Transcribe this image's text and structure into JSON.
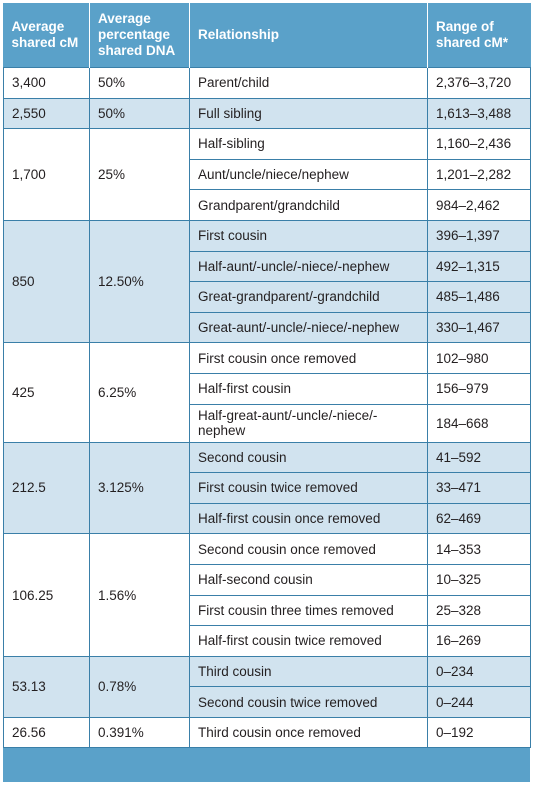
{
  "table": {
    "headers": {
      "avg_cm_line1": "Average",
      "avg_cm_line2": "shared cM",
      "avg_pct_line1": "Average",
      "avg_pct_line2": "percentage",
      "avg_pct_line3": "shared DNA",
      "relationship": "Relationship",
      "range_line1": "Range of",
      "range_line2": "shared cM*"
    },
    "groups": [
      {
        "avg_cm": "3,400",
        "avg_pct": "50%",
        "rows": [
          {
            "relationship": "Parent/child",
            "range": "2,376–3,720"
          }
        ]
      },
      {
        "avg_cm": "2,550",
        "avg_pct": "50%",
        "rows": [
          {
            "relationship": "Full sibling",
            "range": "1,613–3,488"
          }
        ]
      },
      {
        "avg_cm": "1,700",
        "avg_pct": "25%",
        "rows": [
          {
            "relationship": "Half-sibling",
            "range": "1,160–2,436"
          },
          {
            "relationship": "Aunt/uncle/niece/nephew",
            "range": "1,201–2,282"
          },
          {
            "relationship": "Grandparent/grandchild",
            "range": "984–2,462"
          }
        ]
      },
      {
        "avg_cm": "850",
        "avg_pct": "12.50%",
        "rows": [
          {
            "relationship": "First cousin",
            "range": "396–1,397"
          },
          {
            "relationship": "Half-aunt/-uncle/-niece/-nephew",
            "range": "492–1,315"
          },
          {
            "relationship": "Great-grandparent/-grandchild",
            "range": "485–1,486"
          },
          {
            "relationship": "Great-aunt/-uncle/-niece/-nephew",
            "range": "330–1,467"
          }
        ]
      },
      {
        "avg_cm": "425",
        "avg_pct": "6.25%",
        "rows": [
          {
            "relationship": "First cousin once removed",
            "range": "102–980"
          },
          {
            "relationship": "Half-first cousin",
            "range": "156–979"
          },
          {
            "relationship": "Half-great-aunt/-uncle/-niece/-nephew",
            "range": "184–668"
          }
        ]
      },
      {
        "avg_cm": "212.5",
        "avg_pct": "3.125%",
        "rows": [
          {
            "relationship": "Second cousin",
            "range": "41–592"
          },
          {
            "relationship": "First cousin twice removed",
            "range": "33–471"
          },
          {
            "relationship": "Half-first cousin once removed",
            "range": "62–469"
          }
        ]
      },
      {
        "avg_cm": "106.25",
        "avg_pct": "1.56%",
        "rows": [
          {
            "relationship": "Second cousin once removed",
            "range": "14–353"
          },
          {
            "relationship": "Half-second cousin",
            "range": "10–325"
          },
          {
            "relationship": "First cousin three times removed",
            "range": "25–328"
          },
          {
            "relationship": "Half-first cousin twice removed",
            "range": "16–269"
          }
        ]
      },
      {
        "avg_cm": "53.13",
        "avg_pct": "0.78%",
        "rows": [
          {
            "relationship": "Third cousin",
            "range": "0–234"
          },
          {
            "relationship": "Second cousin twice removed",
            "range": "0–244"
          }
        ]
      },
      {
        "avg_cm": "26.56",
        "avg_pct": "0.391%",
        "rows": [
          {
            "relationship": "Third cousin once removed",
            "range": "0–192"
          }
        ]
      }
    ]
  },
  "colors": {
    "header_bg": "#5aa1c9",
    "shaded_row": "#d1e3ef",
    "border": "#3a7fa8"
  }
}
